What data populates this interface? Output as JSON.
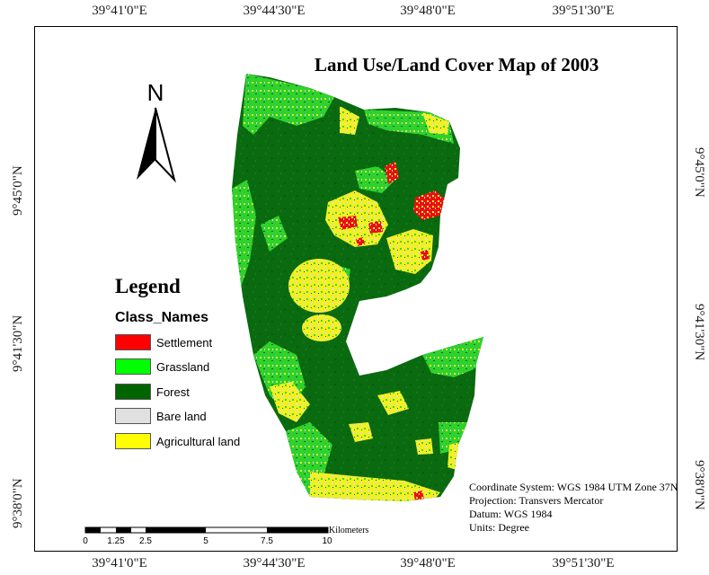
{
  "title": "Land Use/Land Cover Map of 2003",
  "graticule": {
    "top": [
      "39°41'0\"E",
      "39°44'30\"E",
      "39°48'0\"E",
      "39°51'30\"E"
    ],
    "bottom": [
      "39°41'0\"E",
      "39°44'30\"E",
      "39°48'0\"E",
      "39°51'30\"E"
    ],
    "left": [
      "9°45'0\"N",
      "9°41'30\"N",
      "9°38'0\"N"
    ],
    "right": [
      "9°45'0\"N",
      "9°41'30\"N",
      "9°38'0\"N"
    ]
  },
  "north_arrow": {
    "label": "N"
  },
  "legend": {
    "title": "Legend",
    "field": "Class_Names",
    "items": [
      {
        "label": "Settlement",
        "color": "#ff0000"
      },
      {
        "label": "Grassland",
        "color": "#00ff00"
      },
      {
        "label": "Forest",
        "color": "#006400"
      },
      {
        "label": "Bare land",
        "color": "#e0e0e0"
      },
      {
        "label": "Agricultural land",
        "color": "#ffff00"
      }
    ]
  },
  "info": {
    "coordinate_system": "Coordinate System: WGS 1984 UTM Zone 37N",
    "projection": "Projection: Transvers Mercator",
    "datum": "Datum: WGS 1984",
    "units": "Units: Degree"
  },
  "scale_bar": {
    "labels": [
      "0",
      "1.25",
      "2.5",
      "5",
      "7.5",
      "10"
    ],
    "unit": "Kilometers"
  }
}
